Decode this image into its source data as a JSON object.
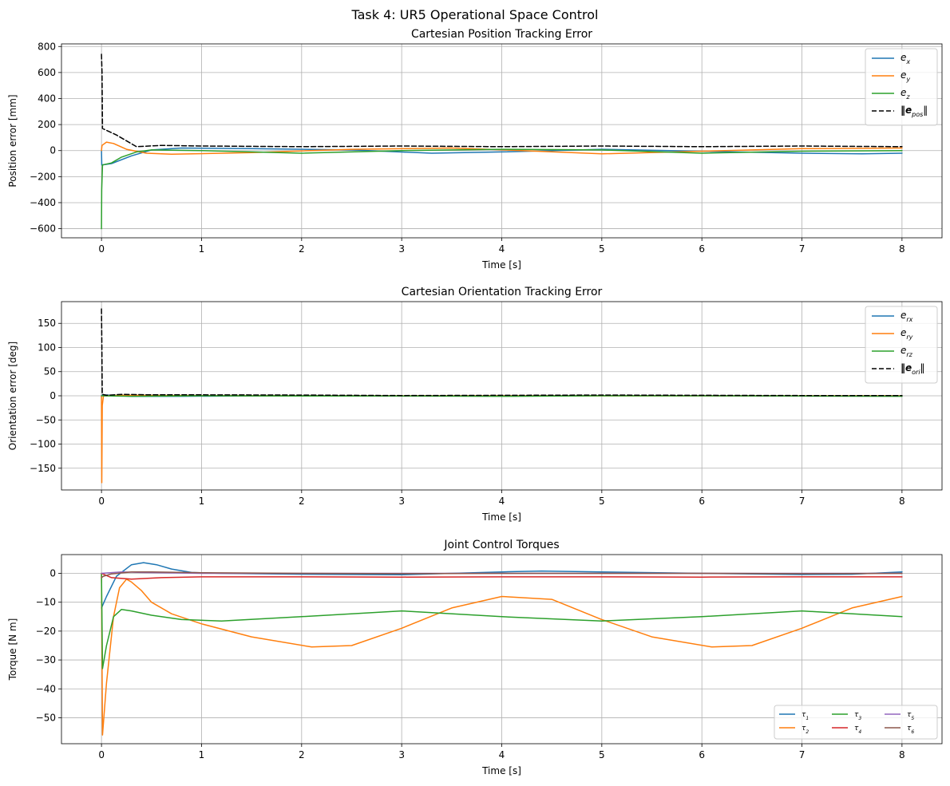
{
  "figure": {
    "suptitle": "Task 4: UR5 Operational Space Control"
  },
  "colors": {
    "blue": "#1f77b4",
    "orange": "#ff7f0e",
    "green": "#2ca02c",
    "red": "#d62728",
    "purple": "#9467bd",
    "brown": "#8c564b",
    "black": "#000000"
  },
  "chart_data": [
    {
      "type": "line",
      "title": "Cartesian Position Tracking Error",
      "xlabel": "Time [s]",
      "ylabel": "Position error [mm]",
      "xlim": [
        -0.4,
        8.4
      ],
      "ylim": [
        -670,
        820
      ],
      "xticks": [
        0,
        1,
        2,
        3,
        4,
        5,
        6,
        7,
        8
      ],
      "yticks": [
        -600,
        -400,
        -200,
        0,
        200,
        400,
        600,
        800
      ],
      "grid": true,
      "legend": {
        "position": "upper-right",
        "ncol": 1,
        "font": 12
      },
      "series": [
        {
          "name": "e_x",
          "label": "e",
          "sub": "x",
          "color": "#1f77b4",
          "x": [
            0,
            0.003,
            0.1,
            0.3,
            0.5,
            0.8,
            1.5,
            2.5,
            3.3,
            4,
            5,
            6,
            7,
            7.6,
            8
          ],
          "y": [
            0,
            -110,
            -100,
            -40,
            5,
            20,
            15,
            5,
            -20,
            -10,
            10,
            -5,
            -20,
            -25,
            -20
          ]
        },
        {
          "name": "e_y",
          "label": "e",
          "sub": "y",
          "color": "#ff7f0e",
          "x": [
            0,
            0.005,
            0.05,
            0.12,
            0.25,
            0.45,
            0.7,
            1.5,
            2.5,
            3.5,
            4.2,
            5,
            6,
            7,
            8
          ],
          "y": [
            0,
            40,
            65,
            55,
            10,
            -20,
            -28,
            -15,
            10,
            20,
            0,
            -25,
            -5,
            15,
            20
          ]
        },
        {
          "name": "e_z",
          "label": "e",
          "sub": "z",
          "color": "#2ca02c",
          "x": [
            0,
            0.002,
            0.01,
            0.1,
            0.2,
            0.35,
            0.5,
            1,
            2,
            3,
            4,
            5,
            6,
            7,
            8
          ],
          "y": [
            -600,
            -300,
            -110,
            -95,
            -50,
            -10,
            5,
            0,
            -20,
            0,
            10,
            5,
            -20,
            -5,
            0
          ]
        },
        {
          "name": "norm_e_pos",
          "label": "‖e",
          "sub": "pos",
          "suffix": "‖",
          "bold": true,
          "dashed": true,
          "color": "#000000",
          "x": [
            0,
            0.005,
            0.01,
            0.15,
            0.35,
            0.6,
            1,
            2,
            3,
            4,
            5,
            6,
            7,
            8
          ],
          "y": [
            740,
            600,
            170,
            120,
            30,
            40,
            35,
            30,
            35,
            30,
            35,
            30,
            35,
            30
          ]
        }
      ]
    },
    {
      "type": "line",
      "title": "Cartesian Orientation Tracking Error",
      "xlabel": "Time [s]",
      "ylabel": "Orientation error [deg]",
      "xlim": [
        -0.4,
        8.4
      ],
      "ylim": [
        -195,
        195
      ],
      "xticks": [
        0,
        1,
        2,
        3,
        4,
        5,
        6,
        7,
        8
      ],
      "yticks": [
        -150,
        -100,
        -50,
        0,
        50,
        100,
        150
      ],
      "grid": true,
      "legend": {
        "position": "upper-right",
        "ncol": 1,
        "font": 12
      },
      "series": [
        {
          "name": "e_rx",
          "label": "e",
          "sub": "rx",
          "color": "#1f77b4",
          "x": [
            0,
            0.01,
            0.3,
            0.8,
            2,
            3,
            4,
            5,
            6,
            7,
            8
          ],
          "y": [
            0,
            2,
            -1,
            -1,
            0.5,
            -0.5,
            0,
            0.5,
            0,
            -0.5,
            0
          ]
        },
        {
          "name": "e_ry",
          "label": "e",
          "sub": "ry",
          "color": "#ff7f0e",
          "x": [
            0,
            0.003,
            0.008,
            0.02,
            0.2,
            1,
            2,
            3,
            4,
            5,
            6,
            7,
            8
          ],
          "y": [
            0,
            -180,
            -20,
            0,
            1,
            0.5,
            0,
            0,
            0,
            0,
            0,
            0,
            0
          ]
        },
        {
          "name": "e_rz",
          "label": "e",
          "sub": "rz",
          "color": "#2ca02c",
          "x": [
            0,
            0.01,
            0.3,
            1,
            2,
            3,
            4,
            5,
            6,
            7,
            8
          ],
          "y": [
            0,
            0,
            -1,
            0,
            -0.5,
            -0.5,
            -1,
            0,
            0,
            -0.5,
            -1
          ]
        },
        {
          "name": "norm_e_ori",
          "label": "‖e",
          "sub": "ori",
          "suffix": "‖",
          "bold": true,
          "dashed": true,
          "color": "#000000",
          "x": [
            0,
            0.003,
            0.008,
            0.05,
            0.2,
            0.5,
            1,
            2,
            3,
            4,
            5,
            6,
            7,
            8
          ],
          "y": [
            180,
            120,
            3,
            1,
            3,
            2,
            2,
            1.5,
            0.5,
            1,
            1.5,
            1,
            0.5,
            0.5
          ]
        }
      ]
    },
    {
      "type": "line",
      "title": "Joint Control Torques",
      "xlabel": "Time [s]",
      "ylabel": "Torque [N m]",
      "xlim": [
        -0.4,
        8.4
      ],
      "ylim": [
        -59,
        6.5
      ],
      "xticks": [
        0,
        1,
        2,
        3,
        4,
        5,
        6,
        7,
        8
      ],
      "yticks": [
        -50,
        -40,
        -30,
        -20,
        -10,
        0
      ],
      "grid": true,
      "legend": {
        "position": "lower-right",
        "ncol": 3,
        "font": 9
      },
      "series": [
        {
          "name": "tau_1",
          "label": "τ",
          "sub": "1",
          "color": "#1f77b4",
          "x": [
            0,
            0.05,
            0.15,
            0.3,
            0.42,
            0.55,
            0.7,
            0.9,
            1.2,
            2,
            3,
            3.5,
            4,
            4.4,
            5,
            6,
            7,
            7.5,
            8
          ],
          "y": [
            -12,
            -8,
            -1,
            3,
            3.7,
            3,
            1.5,
            0.3,
            0,
            -0.3,
            -0.5,
            0,
            0.5,
            0.8,
            0.5,
            0,
            -0.4,
            -0.3,
            0.5
          ]
        },
        {
          "name": "tau_2",
          "label": "τ",
          "sub": "2",
          "color": "#ff7f0e",
          "x": [
            0,
            0.01,
            0.05,
            0.12,
            0.18,
            0.25,
            0.3,
            0.4,
            0.5,
            0.7,
            1,
            1.5,
            2.1,
            2.5,
            3,
            3.5,
            4,
            4.5,
            5,
            5.5,
            6.1,
            6.5,
            7,
            7.5,
            8
          ],
          "y": [
            0,
            -56,
            -38,
            -15,
            -5,
            -2,
            -3,
            -6,
            -10,
            -14,
            -17.5,
            -22,
            -25.5,
            -25,
            -19,
            -12,
            -8,
            -9,
            -16,
            -22,
            -25.5,
            -25,
            -19,
            -12,
            -8
          ]
        },
        {
          "name": "tau_3",
          "label": "τ",
          "sub": "3",
          "color": "#2ca02c",
          "x": [
            0,
            0.01,
            0.05,
            0.12,
            0.2,
            0.3,
            0.5,
            0.8,
            1.2,
            2,
            3,
            4,
            5,
            6,
            7,
            8
          ],
          "y": [
            0,
            -33,
            -25,
            -15,
            -12.5,
            -13,
            -14.5,
            -16,
            -16.5,
            -15,
            -13,
            -15,
            -16.5,
            -15,
            -13,
            -15
          ]
        },
        {
          "name": "tau_4",
          "label": "τ",
          "sub": "4",
          "color": "#d62728",
          "x": [
            0,
            0.1,
            0.3,
            0.6,
            1,
            2,
            3,
            4,
            5,
            6,
            7,
            8
          ],
          "y": [
            0,
            -1.5,
            -2,
            -1.5,
            -1.2,
            -1.2,
            -1.3,
            -1.2,
            -1.2,
            -1.3,
            -1.2,
            -1.2
          ]
        },
        {
          "name": "tau_5",
          "label": "τ",
          "sub": "5",
          "color": "#9467bd",
          "x": [
            0,
            0.2,
            0.4,
            1,
            2,
            3,
            4,
            5,
            6,
            7,
            8
          ],
          "y": [
            0,
            0.5,
            0.3,
            0,
            0,
            0,
            0,
            0,
            0,
            0,
            0
          ]
        },
        {
          "name": "tau_6",
          "label": "τ",
          "sub": "6",
          "color": "#8c564b",
          "x": [
            0,
            0.02,
            0.1,
            0.3,
            0.5,
            1,
            2,
            3,
            4,
            5,
            6,
            7,
            8
          ],
          "y": [
            -1.5,
            -1,
            -0.2,
            0.5,
            0.5,
            0.2,
            0,
            -0.1,
            0,
            0,
            0,
            -0.1,
            0
          ]
        }
      ]
    }
  ]
}
